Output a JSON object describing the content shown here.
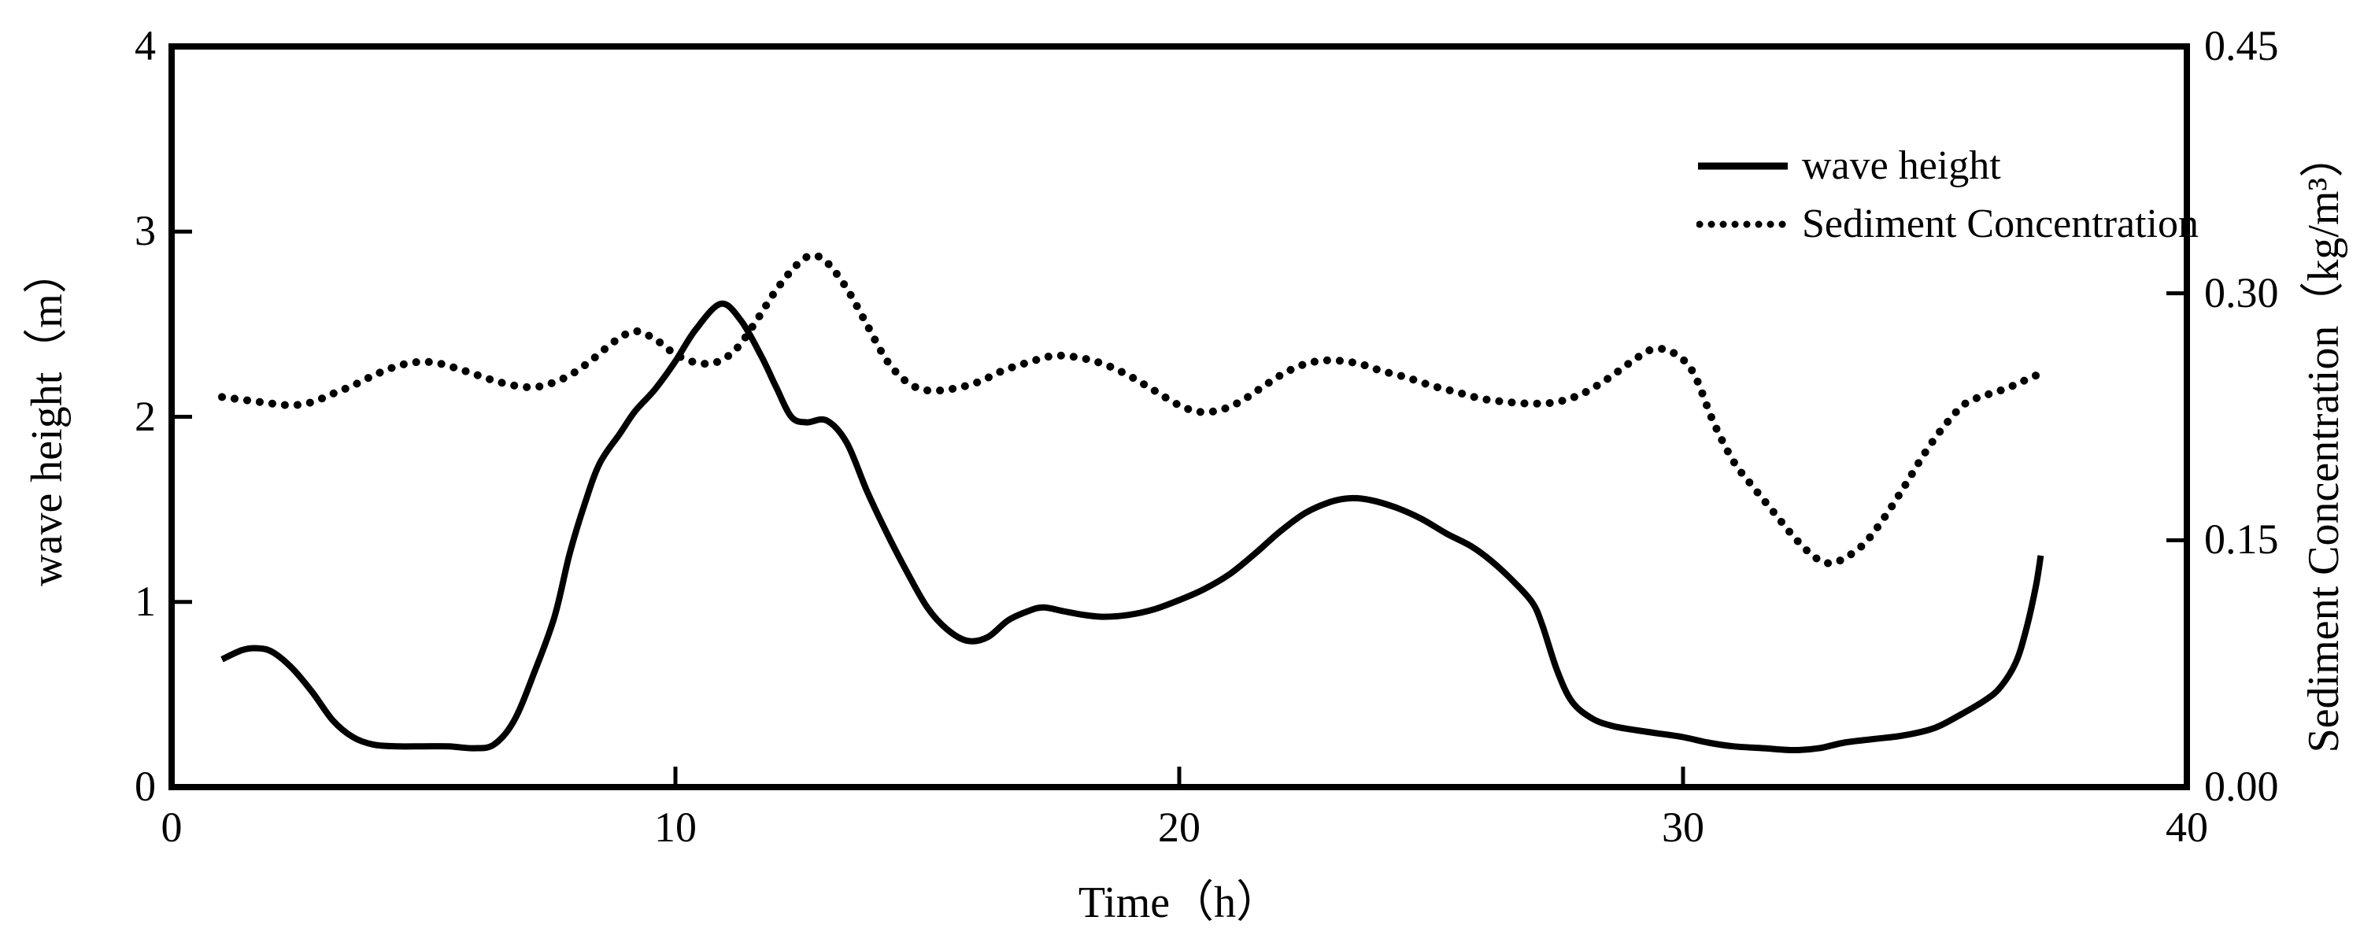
{
  "chart_data": {
    "type": "line",
    "background": "#ffffff",
    "line_color": "#000000",
    "grid": false,
    "legend_position": "top-right",
    "x_axis": {
      "label": "Time（h）",
      "range": [
        0,
        40
      ],
      "ticks": [
        {
          "v": 0,
          "label": "0"
        },
        {
          "v": 10,
          "label": "10"
        },
        {
          "v": 20,
          "label": "20"
        },
        {
          "v": 30,
          "label": "30"
        },
        {
          "v": 40,
          "label": "40"
        }
      ]
    },
    "y_left": {
      "label": "wave height（m）",
      "range": [
        0,
        4
      ],
      "ticks": [
        {
          "v": 0,
          "label": "0"
        },
        {
          "v": 1,
          "label": "1"
        },
        {
          "v": 2,
          "label": "2"
        },
        {
          "v": 3,
          "label": "3"
        },
        {
          "v": 4,
          "label": "4"
        }
      ]
    },
    "y_right": {
      "label": "Sediment Concentration（kg/m³）",
      "range": [
        0,
        0.45
      ],
      "ticks": [
        {
          "v": 0.0,
          "label": "0.00"
        },
        {
          "v": 0.15,
          "label": "0.15"
        },
        {
          "v": 0.3,
          "label": "0.30"
        },
        {
          "v": 0.45,
          "label": "0.45"
        }
      ]
    },
    "series": [
      {
        "name": "wave height",
        "axis": "left",
        "style": "solid",
        "points": [
          [
            1,
            0.69
          ],
          [
            1.4,
            0.74
          ],
          [
            1.7,
            0.75
          ],
          [
            2,
            0.73
          ],
          [
            2.4,
            0.64
          ],
          [
            2.8,
            0.51
          ],
          [
            3.2,
            0.36
          ],
          [
            3.6,
            0.27
          ],
          [
            4,
            0.23
          ],
          [
            4.5,
            0.22
          ],
          [
            5,
            0.22
          ],
          [
            5.5,
            0.22
          ],
          [
            6,
            0.21
          ],
          [
            6.4,
            0.23
          ],
          [
            6.8,
            0.36
          ],
          [
            7.2,
            0.62
          ],
          [
            7.6,
            0.92
          ],
          [
            7.9,
            1.26
          ],
          [
            8.2,
            1.53
          ],
          [
            8.5,
            1.75
          ],
          [
            8.9,
            1.91
          ],
          [
            9.2,
            2.03
          ],
          [
            9.6,
            2.15
          ],
          [
            10,
            2.3
          ],
          [
            10.4,
            2.47
          ],
          [
            10.9,
            2.61
          ],
          [
            11.3,
            2.52
          ],
          [
            11.7,
            2.33
          ],
          [
            12,
            2.16
          ],
          [
            12.3,
            2.0
          ],
          [
            12.6,
            1.97
          ],
          [
            13,
            1.98
          ],
          [
            13.4,
            1.86
          ],
          [
            13.8,
            1.6
          ],
          [
            14.2,
            1.37
          ],
          [
            14.6,
            1.16
          ],
          [
            15,
            0.97
          ],
          [
            15.4,
            0.85
          ],
          [
            15.8,
            0.79
          ],
          [
            16.2,
            0.81
          ],
          [
            16.6,
            0.9
          ],
          [
            17,
            0.95
          ],
          [
            17.3,
            0.97
          ],
          [
            17.7,
            0.95
          ],
          [
            18.1,
            0.93
          ],
          [
            18.5,
            0.92
          ],
          [
            19,
            0.93
          ],
          [
            19.5,
            0.96
          ],
          [
            20,
            1.01
          ],
          [
            20.5,
            1.07
          ],
          [
            21,
            1.15
          ],
          [
            21.5,
            1.26
          ],
          [
            22,
            1.38
          ],
          [
            22.5,
            1.48
          ],
          [
            23,
            1.54
          ],
          [
            23.4,
            1.56
          ],
          [
            23.8,
            1.55
          ],
          [
            24.3,
            1.51
          ],
          [
            24.8,
            1.45
          ],
          [
            25.3,
            1.37
          ],
          [
            25.8,
            1.3
          ],
          [
            26.2,
            1.22
          ],
          [
            26.6,
            1.12
          ],
          [
            27,
            1.0
          ],
          [
            27.2,
            0.88
          ],
          [
            27.5,
            0.63
          ],
          [
            27.8,
            0.46
          ],
          [
            28.2,
            0.37
          ],
          [
            28.6,
            0.33
          ],
          [
            29,
            0.31
          ],
          [
            29.5,
            0.29
          ],
          [
            30,
            0.27
          ],
          [
            30.5,
            0.24
          ],
          [
            31,
            0.22
          ],
          [
            31.6,
            0.21
          ],
          [
            32.2,
            0.2
          ],
          [
            32.7,
            0.21
          ],
          [
            33.2,
            0.24
          ],
          [
            33.8,
            0.26
          ],
          [
            34.4,
            0.28
          ],
          [
            35,
            0.32
          ],
          [
            35.5,
            0.39
          ],
          [
            36,
            0.47
          ],
          [
            36.3,
            0.54
          ],
          [
            36.6,
            0.67
          ],
          [
            36.8,
            0.84
          ],
          [
            37,
            1.08
          ],
          [
            37.1,
            1.25
          ]
        ]
      },
      {
        "name": "Sediment Concentration",
        "axis": "right",
        "style": "dotted",
        "points": [
          [
            1,
            0.237
          ],
          [
            1.5,
            0.235
          ],
          [
            2,
            0.233
          ],
          [
            2.4,
            0.232
          ],
          [
            2.8,
            0.234
          ],
          [
            3.2,
            0.239
          ],
          [
            3.6,
            0.244
          ],
          [
            4,
            0.25
          ],
          [
            4.4,
            0.255
          ],
          [
            4.8,
            0.258
          ],
          [
            5.2,
            0.258
          ],
          [
            5.6,
            0.255
          ],
          [
            6,
            0.251
          ],
          [
            6.4,
            0.247
          ],
          [
            6.8,
            0.244
          ],
          [
            7.2,
            0.243
          ],
          [
            7.6,
            0.246
          ],
          [
            8,
            0.252
          ],
          [
            8.4,
            0.261
          ],
          [
            8.8,
            0.271
          ],
          [
            9.2,
            0.277
          ],
          [
            9.6,
            0.272
          ],
          [
            10,
            0.263
          ],
          [
            10.4,
            0.258
          ],
          [
            10.8,
            0.258
          ],
          [
            11.2,
            0.266
          ],
          [
            11.6,
            0.283
          ],
          [
            12,
            0.302
          ],
          [
            12.4,
            0.317
          ],
          [
            12.7,
            0.323
          ],
          [
            13,
            0.319
          ],
          [
            13.4,
            0.303
          ],
          [
            13.8,
            0.281
          ],
          [
            14.2,
            0.259
          ],
          [
            14.6,
            0.246
          ],
          [
            15,
            0.241
          ],
          [
            15.5,
            0.242
          ],
          [
            16,
            0.246
          ],
          [
            16.5,
            0.253
          ],
          [
            17,
            0.258
          ],
          [
            17.5,
            0.262
          ],
          [
            18,
            0.261
          ],
          [
            18.5,
            0.257
          ],
          [
            19,
            0.25
          ],
          [
            19.5,
            0.241
          ],
          [
            20,
            0.232
          ],
          [
            20.4,
            0.228
          ],
          [
            20.8,
            0.229
          ],
          [
            21.2,
            0.234
          ],
          [
            21.6,
            0.242
          ],
          [
            22,
            0.25
          ],
          [
            22.4,
            0.256
          ],
          [
            22.8,
            0.259
          ],
          [
            23.2,
            0.259
          ],
          [
            23.6,
            0.257
          ],
          [
            24,
            0.253
          ],
          [
            24.5,
            0.249
          ],
          [
            25,
            0.244
          ],
          [
            25.5,
            0.24
          ],
          [
            26,
            0.236
          ],
          [
            26.5,
            0.234
          ],
          [
            27,
            0.233
          ],
          [
            27.5,
            0.234
          ],
          [
            28,
            0.239
          ],
          [
            28.5,
            0.248
          ],
          [
            29,
            0.259
          ],
          [
            29.4,
            0.266
          ],
          [
            29.8,
            0.264
          ],
          [
            30.2,
            0.252
          ],
          [
            30.6,
            0.222
          ],
          [
            31,
            0.198
          ],
          [
            31.4,
            0.182
          ],
          [
            31.8,
            0.167
          ],
          [
            32.2,
            0.152
          ],
          [
            32.6,
            0.14
          ],
          [
            32.9,
            0.136
          ],
          [
            33.2,
            0.139
          ],
          [
            33.6,
            0.148
          ],
          [
            34,
            0.164
          ],
          [
            34.4,
            0.183
          ],
          [
            34.8,
            0.203
          ],
          [
            35.2,
            0.22
          ],
          [
            35.6,
            0.233
          ],
          [
            36,
            0.238
          ],
          [
            36.4,
            0.242
          ],
          [
            36.7,
            0.246
          ],
          [
            37,
            0.25
          ]
        ]
      }
    ]
  }
}
